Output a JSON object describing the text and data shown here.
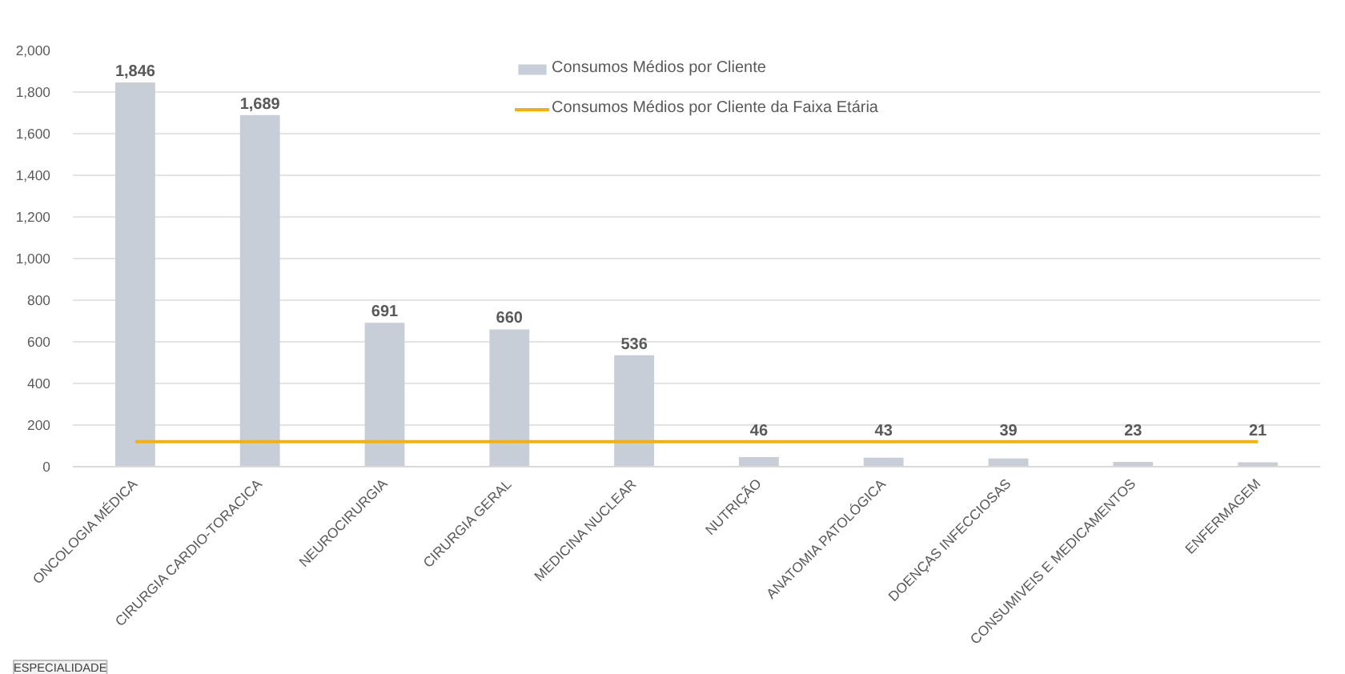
{
  "chart_data": {
    "type": "bar",
    "categories": [
      "ONCOLOGIA MÉDICA",
      "CIRURGIA CARDIO-TORACICA",
      "NEUROCIRURGIA",
      "CIRURGIA GERAL",
      "MEDICINA NUCLEAR",
      "NUTRIÇÃO",
      "ANATOMIA PATOLÓGICA",
      "DOENÇAS INFECCIOSAS",
      "CONSUMIVEIS E MEDICAMENTOS",
      "ENFERMAGEM"
    ],
    "series": [
      {
        "name": "Consumos Médios por Cliente",
        "color": "#c8ced8",
        "values": [
          1846,
          1689,
          691,
          660,
          536,
          46,
          43,
          39,
          23,
          21
        ],
        "value_labels": [
          "1,846",
          "1,689",
          "691",
          "660",
          "536",
          "46",
          "43",
          "39",
          "23",
          "21"
        ]
      },
      {
        "name": "Consumos Médios por Cliente da Faixa Etária",
        "type": "line",
        "color": "#f5b10a",
        "values": [
          120,
          120,
          120,
          120,
          120,
          120,
          120,
          120,
          120,
          120
        ]
      }
    ],
    "ylim": [
      0,
      2000
    ],
    "yticks": [
      0,
      200,
      400,
      600,
      800,
      {
        "value": 1000,
        "label": "1,000"
      },
      {
        "value": 1200,
        "label": "1,200"
      },
      {
        "value": 1400,
        "label": "1,400"
      },
      {
        "value": 1600,
        "label": "1,600"
      },
      {
        "value": 1800,
        "label": "1,800"
      },
      {
        "value": 2000,
        "label": "2,000"
      }
    ],
    "grid": "y",
    "legend": "top",
    "annotations": [
      "ESPECIALIDADE"
    ]
  }
}
